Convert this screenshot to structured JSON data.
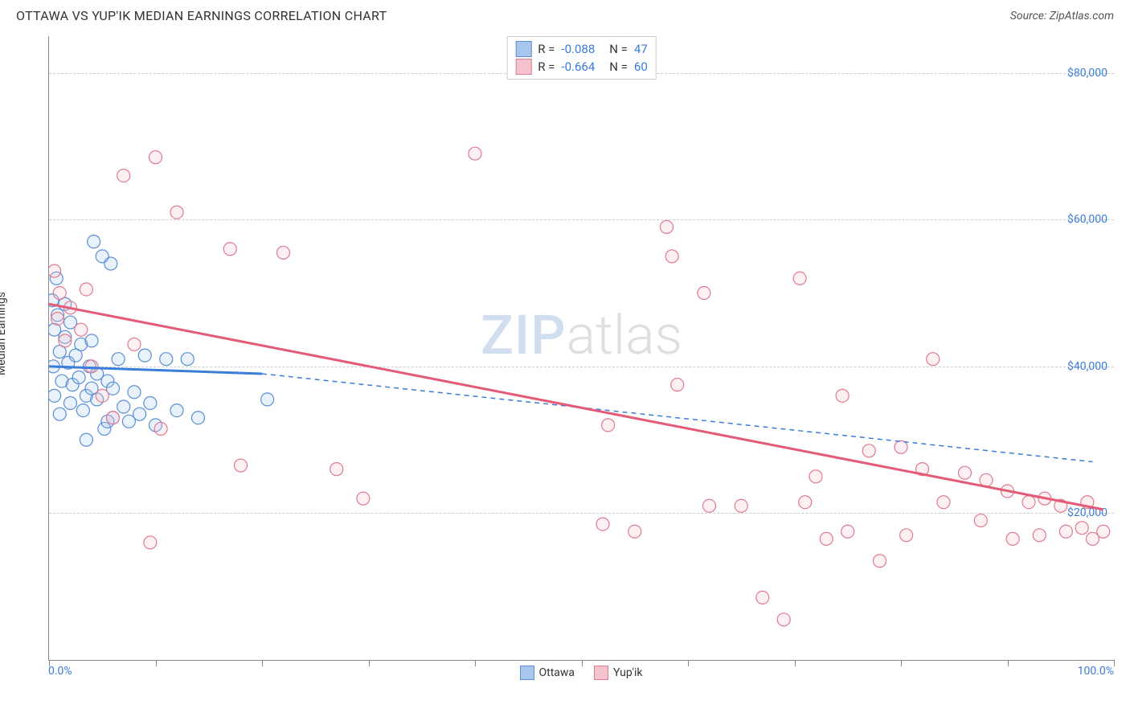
{
  "header": {
    "title": "OTTAWA VS YUP'IK MEDIAN EARNINGS CORRELATION CHART",
    "source": "Source: ZipAtlas.com"
  },
  "chart": {
    "type": "scatter",
    "ylabel": "Median Earnings",
    "xlim": [
      0,
      100
    ],
    "ylim": [
      0,
      85000
    ],
    "xtick_positions": [
      0,
      10,
      20,
      30,
      40,
      50,
      60,
      70,
      80,
      90,
      100
    ],
    "xtick_labels": {
      "left": "0.0%",
      "right": "100.0%"
    },
    "ytick_positions": [
      20000,
      40000,
      60000,
      80000
    ],
    "ytick_labels": [
      "$20,000",
      "$40,000",
      "$60,000",
      "$80,000"
    ],
    "grid_color": "#cccccc",
    "axis_color": "#888888",
    "background_color": "#ffffff",
    "label_color": "#3b7dd8",
    "marker_radius": 8,
    "marker_stroke_width": 1.2,
    "marker_fill_opacity": 0.25,
    "watermark": {
      "zip": "ZIP",
      "atlas": "atlas"
    },
    "series": [
      {
        "name": "Ottawa",
        "fill_color": "#a9c7ec",
        "stroke_color": "#5a8fd6",
        "line_color": "#3b7dd8",
        "stats": {
          "R": "-0.088",
          "N": "47"
        },
        "trend": {
          "x1": 0,
          "y1": 40000,
          "x2": 20,
          "y2": 39000,
          "dash_to_x": 98,
          "dash_to_y": 27000
        },
        "points": [
          [
            0.3,
            49000
          ],
          [
            0.5,
            45000
          ],
          [
            0.7,
            52000
          ],
          [
            0.8,
            47000
          ],
          [
            1.0,
            42000
          ],
          [
            1.2,
            38000
          ],
          [
            0.5,
            36000
          ],
          [
            1.5,
            44000
          ],
          [
            1.8,
            40500
          ],
          [
            2.0,
            35000
          ],
          [
            2.2,
            37500
          ],
          [
            0.4,
            40000
          ],
          [
            2.5,
            41500
          ],
          [
            2.8,
            38500
          ],
          [
            3.0,
            43000
          ],
          [
            3.2,
            34000
          ],
          [
            3.5,
            36000
          ],
          [
            1.0,
            33500
          ],
          [
            3.8,
            40000
          ],
          [
            4.0,
            37000
          ],
          [
            4.2,
            57000
          ],
          [
            4.5,
            35500
          ],
          [
            5.0,
            55000
          ],
          [
            5.2,
            31500
          ],
          [
            5.5,
            38000
          ],
          [
            5.8,
            54000
          ],
          [
            6.0,
            33000
          ],
          [
            6.5,
            41000
          ],
          [
            7.0,
            34500
          ],
          [
            7.5,
            32500
          ],
          [
            8.0,
            36500
          ],
          [
            8.5,
            33500
          ],
          [
            9.0,
            41500
          ],
          [
            9.5,
            35000
          ],
          [
            10.0,
            32000
          ],
          [
            3.5,
            30000
          ],
          [
            11.0,
            41000
          ],
          [
            12.0,
            34000
          ],
          [
            13.0,
            41000
          ],
          [
            14.0,
            33000
          ],
          [
            4.0,
            43500
          ],
          [
            2.0,
            46000
          ],
          [
            1.5,
            48500
          ],
          [
            20.5,
            35500
          ],
          [
            6.0,
            37000
          ],
          [
            4.5,
            39000
          ],
          [
            5.5,
            32500
          ]
        ]
      },
      {
        "name": "Yup'ik",
        "fill_color": "#f5c3ce",
        "stroke_color": "#e07a8f",
        "line_color": "#e45b78",
        "stats": {
          "R": "-0.664",
          "N": "60"
        },
        "trend": {
          "x1": 0,
          "y1": 48500,
          "x2": 99,
          "y2": 20500
        },
        "points": [
          [
            10.0,
            68500
          ],
          [
            7.0,
            66000
          ],
          [
            12.0,
            61000
          ],
          [
            0.5,
            53000
          ],
          [
            1.0,
            50000
          ],
          [
            17.0,
            56000
          ],
          [
            22.0,
            55500
          ],
          [
            10.5,
            31500
          ],
          [
            18.0,
            26500
          ],
          [
            27.0,
            26000
          ],
          [
            29.5,
            22000
          ],
          [
            40.0,
            69000
          ],
          [
            52.0,
            18500
          ],
          [
            52.5,
            32000
          ],
          [
            55.0,
            17500
          ],
          [
            58.0,
            59000
          ],
          [
            58.5,
            55000
          ],
          [
            59.0,
            37500
          ],
          [
            61.5,
            50000
          ],
          [
            62.0,
            21000
          ],
          [
            65.0,
            21000
          ],
          [
            67.0,
            8500
          ],
          [
            69.0,
            5500
          ],
          [
            70.5,
            52000
          ],
          [
            71.0,
            21500
          ],
          [
            72.0,
            25000
          ],
          [
            73.0,
            16500
          ],
          [
            74.5,
            36000
          ],
          [
            75.0,
            17500
          ],
          [
            77.0,
            28500
          ],
          [
            78.0,
            13500
          ],
          [
            80.0,
            29000
          ],
          [
            80.5,
            17000
          ],
          [
            82.0,
            26000
          ],
          [
            83.0,
            41000
          ],
          [
            84.0,
            21500
          ],
          [
            86.0,
            25500
          ],
          [
            87.5,
            19000
          ],
          [
            88.0,
            24500
          ],
          [
            90.0,
            23000
          ],
          [
            90.5,
            16500
          ],
          [
            92.0,
            21500
          ],
          [
            93.0,
            17000
          ],
          [
            93.5,
            22000
          ],
          [
            95.0,
            21000
          ],
          [
            95.5,
            17500
          ],
          [
            97.0,
            18000
          ],
          [
            97.5,
            21500
          ],
          [
            98.0,
            16500
          ],
          [
            99.0,
            17500
          ],
          [
            2.0,
            48000
          ],
          [
            3.0,
            45000
          ],
          [
            0.8,
            46500
          ],
          [
            1.5,
            43500
          ],
          [
            4.0,
            40000
          ],
          [
            5.0,
            36000
          ],
          [
            6.0,
            33000
          ],
          [
            8.0,
            43000
          ],
          [
            3.5,
            50500
          ],
          [
            9.5,
            16000
          ]
        ]
      }
    ],
    "bottom_legend": [
      {
        "label": "Ottawa",
        "fill": "#a9c7ec",
        "stroke": "#5a8fd6"
      },
      {
        "label": "Yup'ik",
        "fill": "#f5c3ce",
        "stroke": "#e07a8f"
      }
    ]
  }
}
